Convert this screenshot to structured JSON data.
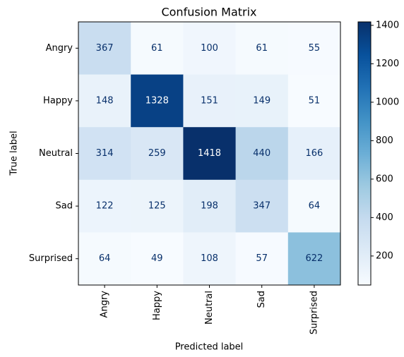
{
  "chart_data": {
    "type": "heatmap",
    "title": "Confusion Matrix",
    "x_label": "Predicted label",
    "y_label": "True label",
    "x_categories": [
      "Angry",
      "Happy",
      "Neutral",
      "Sad",
      "Surprised"
    ],
    "y_categories": [
      "Angry",
      "Happy",
      "Neutral",
      "Sad",
      "Surprised"
    ],
    "values": [
      [
        367,
        61,
        100,
        61,
        55
      ],
      [
        148,
        1328,
        151,
        149,
        51
      ],
      [
        314,
        259,
        1418,
        440,
        166
      ],
      [
        122,
        125,
        198,
        347,
        64
      ],
      [
        64,
        49,
        108,
        57,
        622
      ]
    ],
    "colormap": [
      "#f7fbff",
      "#deebf7",
      "#c6dbef",
      "#9ecae1",
      "#6baed6",
      "#4292c6",
      "#2171b5",
      "#08519c",
      "#08306b"
    ],
    "text_colors": [
      "#08306b",
      "#ffffff"
    ],
    "clim": [
      49,
      1418
    ],
    "colorbar_ticks": [
      200,
      400,
      600,
      800,
      1000,
      1200,
      1400
    ]
  }
}
